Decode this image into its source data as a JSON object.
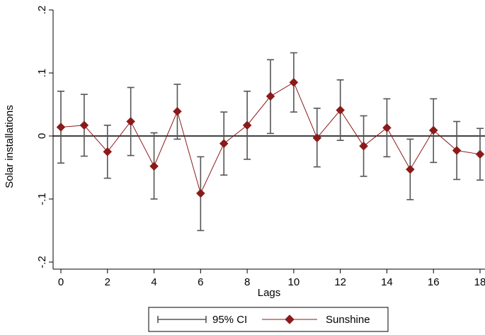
{
  "chart_data": {
    "type": "line",
    "xlabel": "Lags",
    "ylabel": "Solar installations",
    "xlim": [
      -0.2,
      18.2
    ],
    "ylim": [
      -0.2,
      0.2
    ],
    "x_ticks": [
      0,
      2,
      4,
      6,
      8,
      10,
      12,
      14,
      16,
      18
    ],
    "y_ticks": [
      -0.2,
      -0.1,
      0,
      0.1,
      0.2
    ],
    "y_tick_labels": [
      "-.2",
      "-.1",
      "0",
      ".1",
      ".2"
    ],
    "reference_line_y": 0,
    "legend": {
      "placement": "bottom",
      "ci_label": "95% CI",
      "series_label": "Sunshine"
    },
    "colors": {
      "series": "#8b1a1a",
      "ci": "#555555",
      "axis": "#000000"
    },
    "x": [
      0,
      1,
      2,
      3,
      4,
      5,
      6,
      7,
      8,
      9,
      10,
      11,
      12,
      13,
      14,
      15,
      16,
      17,
      18
    ],
    "series": [
      {
        "name": "Sunshine",
        "values": [
          0.014,
          0.017,
          -0.025,
          0.023,
          -0.048,
          0.039,
          -0.091,
          -0.012,
          0.017,
          0.063,
          0.085,
          -0.003,
          0.041,
          -0.016,
          0.013,
          -0.053,
          0.009,
          -0.023,
          -0.029
        ],
        "ci_lower": [
          -0.043,
          -0.032,
          -0.067,
          -0.031,
          -0.1,
          -0.005,
          -0.15,
          -0.062,
          -0.037,
          0.004,
          0.038,
          -0.049,
          -0.007,
          -0.064,
          -0.033,
          -0.101,
          -0.042,
          -0.069,
          -0.07
        ],
        "ci_upper": [
          0.071,
          0.066,
          0.017,
          0.077,
          0.005,
          0.082,
          -0.033,
          0.038,
          0.071,
          0.121,
          0.132,
          0.044,
          0.089,
          0.032,
          0.059,
          -0.005,
          0.059,
          0.023,
          0.012
        ]
      }
    ]
  }
}
